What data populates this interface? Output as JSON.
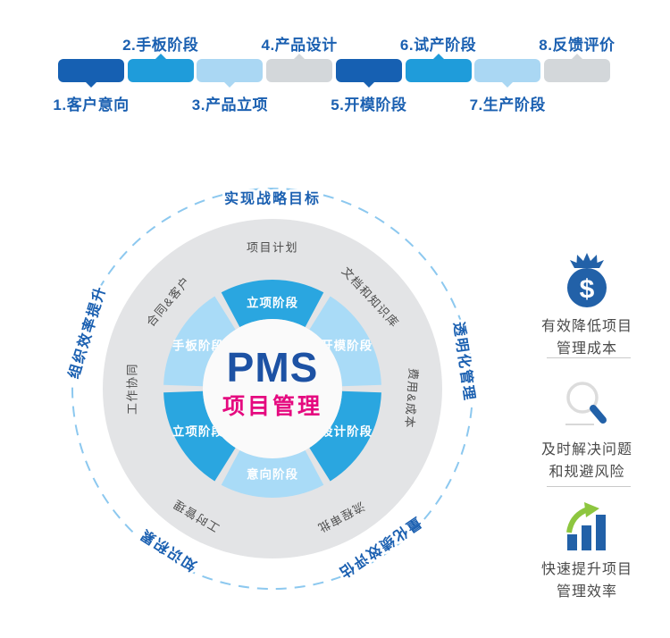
{
  "process_bar": {
    "label_color": "#1b60b1",
    "stages": [
      {
        "label": "1.客户意向",
        "label_position": "below",
        "color": "#1660b2"
      },
      {
        "label": "2.手板阶段",
        "label_position": "above",
        "color": "#1f9cda"
      },
      {
        "label": "3.产品立项",
        "label_position": "below",
        "color": "#aad7f3"
      },
      {
        "label": "4.产品设计",
        "label_position": "above",
        "color": "#d3d7da"
      },
      {
        "label": "5.开模阶段",
        "label_position": "below",
        "color": "#1660b2"
      },
      {
        "label": "6.试产阶段",
        "label_position": "above",
        "color": "#1f9cda"
      },
      {
        "label": "7.生产阶段",
        "label_position": "below",
        "color": "#aad7f3"
      },
      {
        "label": "8.反馈评价",
        "label_position": "above",
        "color": "#d3d7da"
      }
    ]
  },
  "wheel": {
    "center": {
      "title": "PMS",
      "subtitle": "项目管理",
      "title_color": "#1d52a4",
      "subtitle_color": "#e5097f",
      "circle_color": "#fafafa"
    },
    "ring_color": "#e3e4e6",
    "dashed_color": "#8cc8ef",
    "ring_label_color": "#4d4d4d",
    "outer_label_color": "#1b60b1",
    "segments": [
      {
        "label": "立项阶段",
        "color": "#2aa6e0"
      },
      {
        "label": "开模阶段",
        "color": "#a9dbf7"
      },
      {
        "label": "设计阶段",
        "color": "#2aa6e0"
      },
      {
        "label": "意向阶段",
        "color": "#a9dbf7"
      },
      {
        "label": "立项阶段",
        "color": "#2aa6e0"
      },
      {
        "label": "手板阶段",
        "color": "#a9dbf7"
      }
    ],
    "ring_labels": [
      "项目计划",
      "文档和知识库",
      "费用&成本",
      "流程审批",
      "工时管理",
      "工作协同",
      "合同&客户"
    ],
    "outer_labels": [
      "实现战略目标",
      "透明化管理",
      "量化绩效评估",
      "知识积累",
      "组织效率提升"
    ]
  },
  "benefits": [
    {
      "icon": "money-bag-icon",
      "lines": [
        "有效降低项目",
        "管理成本"
      ]
    },
    {
      "icon": "magnifier-icon",
      "lines": [
        "及时解决问题",
        "和规避风险"
      ]
    },
    {
      "icon": "bar-chart-up-icon",
      "lines": [
        "快速提升项目",
        "管理效率"
      ]
    }
  ],
  "icon_colors": {
    "blue": "#2261a8",
    "green": "#8dc63f",
    "gray": "#d8d8d8"
  }
}
